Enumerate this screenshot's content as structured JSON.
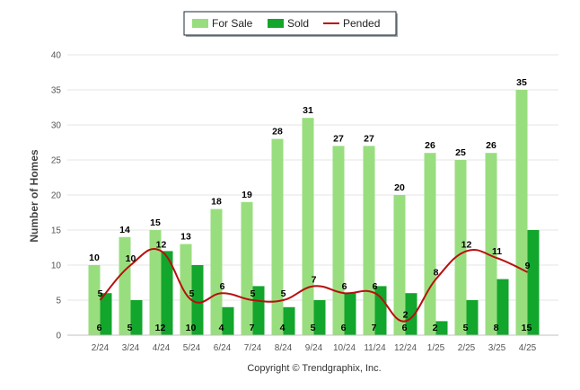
{
  "chart_data": {
    "type": "bar",
    "categories": [
      "2/24",
      "3/24",
      "4/24",
      "5/24",
      "6/24",
      "7/24",
      "8/24",
      "9/24",
      "10/24",
      "11/24",
      "12/24",
      "1/25",
      "2/25",
      "3/25",
      "4/25"
    ],
    "series": [
      {
        "name": "For Sale",
        "kind": "bar",
        "color": "#99de7e",
        "values": [
          10,
          14,
          15,
          13,
          18,
          19,
          28,
          31,
          27,
          27,
          20,
          26,
          25,
          26,
          35
        ]
      },
      {
        "name": "Sold",
        "kind": "bar",
        "color": "#12a62c",
        "values": [
          6,
          5,
          12,
          10,
          4,
          7,
          4,
          5,
          6,
          7,
          6,
          2,
          5,
          8,
          15
        ]
      },
      {
        "name": "Pended",
        "kind": "line",
        "color": "#b80f0f",
        "values": [
          5,
          10,
          12,
          5,
          6,
          5,
          5,
          7,
          6,
          6,
          2,
          8,
          12,
          11,
          9
        ]
      }
    ],
    "ylabel": "Number of Homes",
    "xlabel": "",
    "ylim": [
      0,
      40
    ],
    "yticks": [
      0,
      5,
      10,
      15,
      20,
      25,
      30,
      35,
      40
    ],
    "legend_position": "top-center",
    "grid": true,
    "copyright": "Copyright © Trendgraphix, Inc."
  }
}
